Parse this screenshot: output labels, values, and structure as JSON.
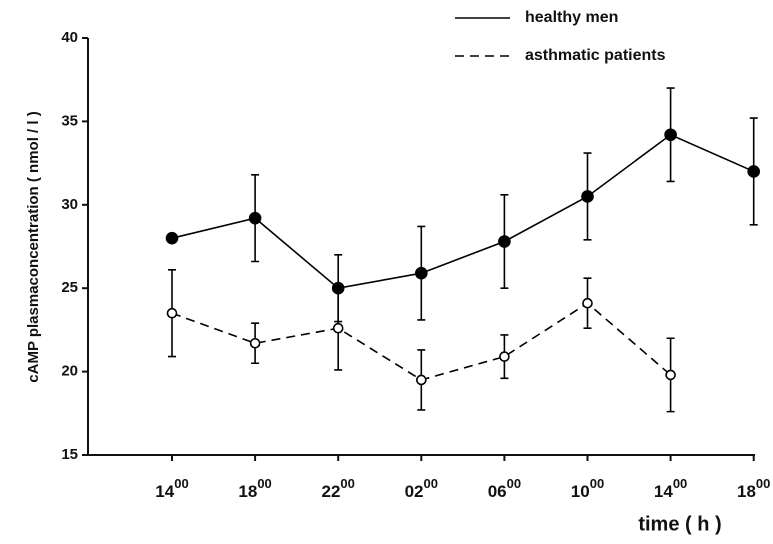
{
  "chart_data": {
    "type": "line",
    "y_label": "cAMP plasmaconcentration ( nmol / l )",
    "x_label": "time ( h )",
    "categories": [
      "14",
      "18",
      "22",
      "02",
      "06",
      "10",
      "14",
      "18"
    ],
    "category_superscript": "00",
    "ylim": [
      15,
      40
    ],
    "yticks": [
      15,
      20,
      25,
      30,
      35,
      40
    ],
    "legend": "top-right",
    "series": [
      {
        "name": "healthy men",
        "color": "#000000",
        "dash": "solid",
        "marker": "filled",
        "values": [
          28.0,
          29.2,
          25.0,
          25.9,
          27.8,
          30.5,
          34.2,
          32.0
        ],
        "errors": [
          null,
          2.6,
          2.0,
          2.8,
          2.8,
          2.6,
          2.8,
          3.2
        ]
      },
      {
        "name": "asthmatic patients",
        "color": "#000000",
        "dash": "dashed",
        "marker": "open",
        "values": [
          23.5,
          21.7,
          22.6,
          19.5,
          20.9,
          24.1,
          19.8,
          null
        ],
        "errors": [
          2.6,
          1.2,
          2.5,
          1.8,
          1.3,
          1.5,
          2.2,
          null
        ]
      }
    ]
  }
}
